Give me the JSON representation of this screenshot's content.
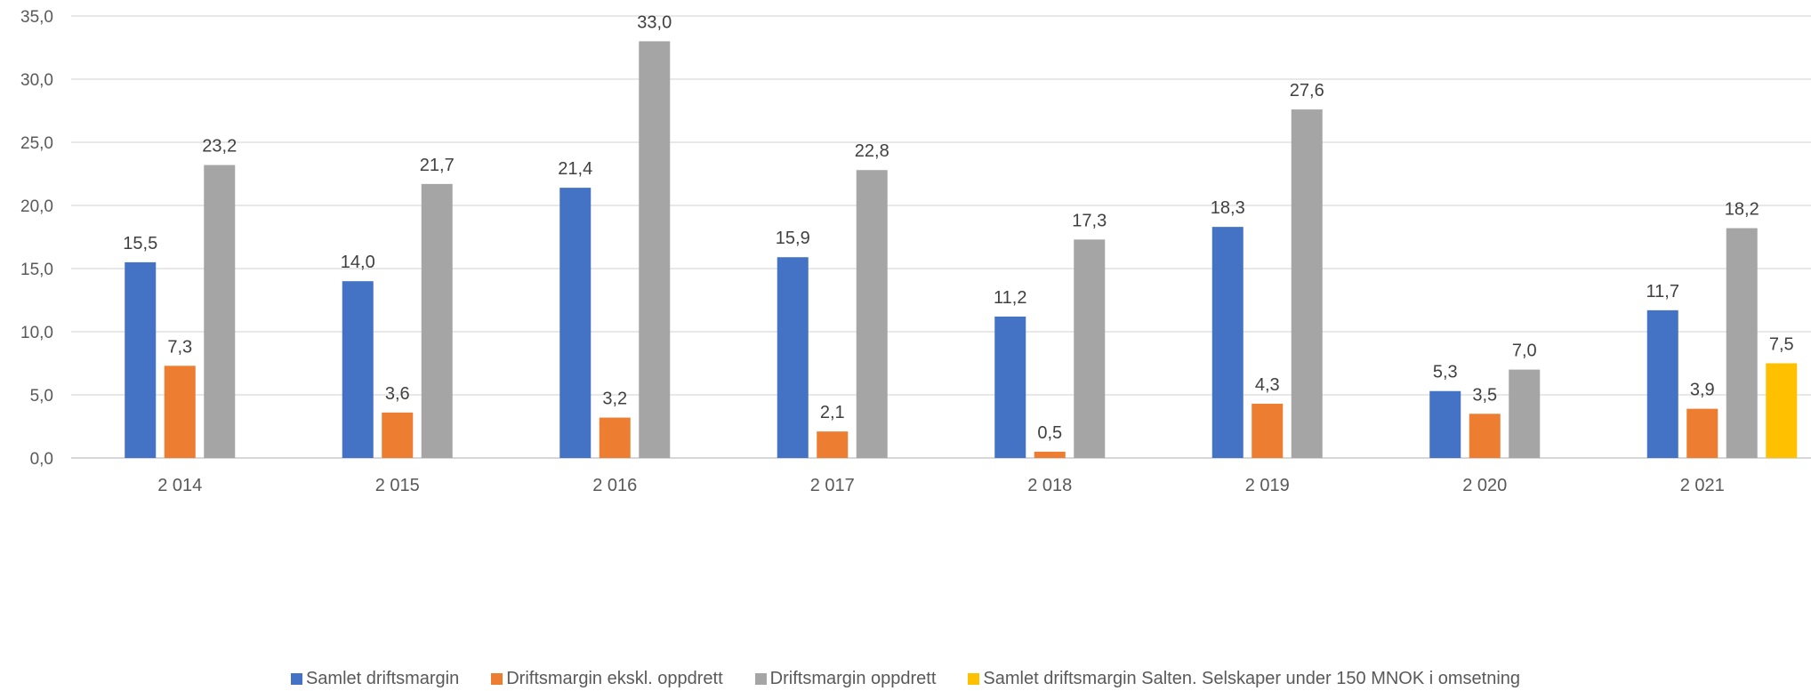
{
  "chart_data": {
    "type": "bar",
    "categories": [
      "2 014",
      "2 015",
      "2 016",
      "2 017",
      "2 018",
      "2 019",
      "2 020",
      "2 021"
    ],
    "series": [
      {
        "name": "Samlet driftsmargin",
        "color": "#4472C4",
        "values": [
          15.5,
          14.0,
          21.4,
          15.9,
          11.2,
          18.3,
          5.3,
          11.7
        ],
        "labels": [
          "15,5",
          "14,0",
          "21,4",
          "15,9",
          "11,2",
          "18,3",
          "5,3",
          "11,7"
        ]
      },
      {
        "name": "Driftsmargin ekskl. oppdrett",
        "color": "#ED7D31",
        "values": [
          7.3,
          3.6,
          3.2,
          2.1,
          0.5,
          4.3,
          3.5,
          3.9
        ],
        "labels": [
          "7,3",
          "3,6",
          "3,2",
          "2,1",
          "0,5",
          "4,3",
          "3,5",
          "3,9"
        ]
      },
      {
        "name": "Driftsmargin oppdrett",
        "color": "#A5A5A5",
        "values": [
          23.2,
          21.7,
          33.0,
          22.8,
          17.3,
          27.6,
          7.0,
          18.2
        ],
        "labels": [
          "23,2",
          "21,7",
          "33,0",
          "22,8",
          "17,3",
          "27,6",
          "7,0",
          "18,2"
        ]
      },
      {
        "name": "Samlet driftsmargin Salten. Selskaper under 150 MNOK i omsetning",
        "color": "#FFC000",
        "values": [
          null,
          null,
          null,
          null,
          null,
          null,
          null,
          7.5
        ],
        "labels": [
          null,
          null,
          null,
          null,
          null,
          null,
          null,
          "7,5"
        ]
      }
    ],
    "ylim": [
      0,
      35
    ],
    "yticks": [
      0,
      5,
      10,
      15,
      20,
      25,
      30,
      35
    ],
    "ytick_labels": [
      "0,0",
      "5,0",
      "10,0",
      "15,0",
      "20,0",
      "25,0",
      "30,0",
      "35,0"
    ],
    "grid": true,
    "legend_position": "bottom",
    "title": "",
    "xlabel": "",
    "ylabel": ""
  }
}
